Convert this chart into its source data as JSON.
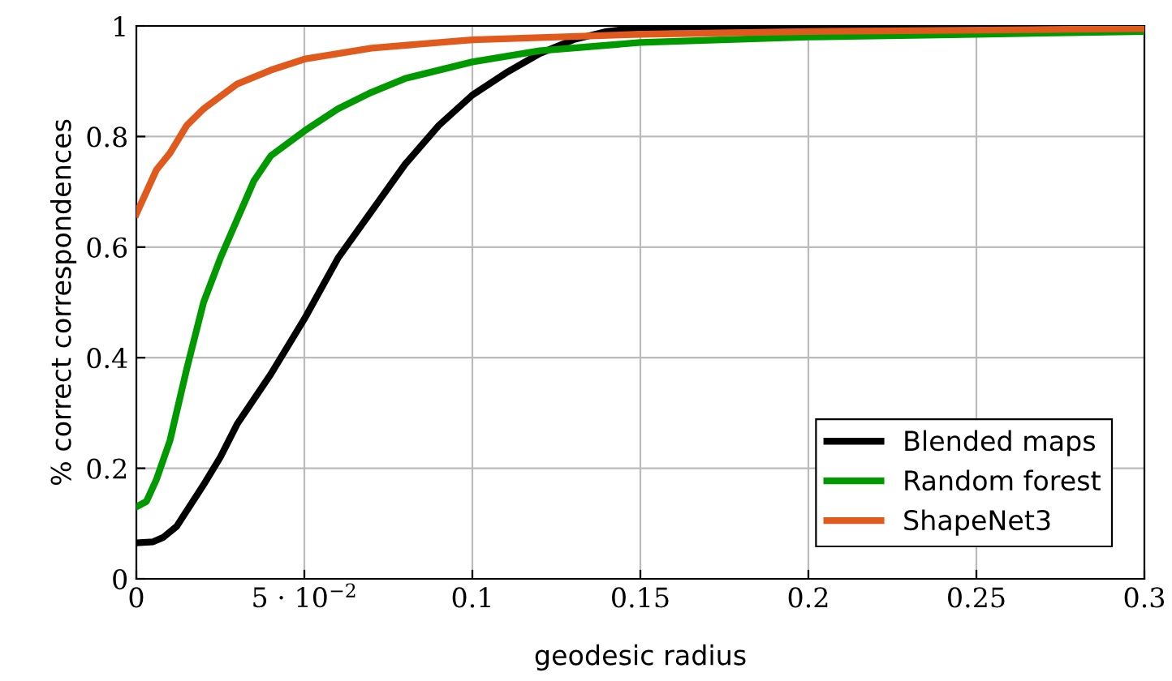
{
  "chart_data": {
    "type": "line",
    "xlabel": "geodesic radius",
    "ylabel": "% correct correspondences",
    "xlim": [
      0,
      0.3
    ],
    "ylim": [
      0,
      1
    ],
    "xticks": [
      0,
      {
        "value": 0.05,
        "label": "5 · 10$^{−2}$"
      },
      0.1,
      0.15,
      0.2,
      0.25,
      0.3
    ],
    "yticks": [
      0,
      0.2,
      0.4,
      0.6,
      0.8,
      1
    ],
    "grid": true,
    "legend": "bottom right",
    "marker": "none",
    "line_style": "solid",
    "series": [
      {
        "name": "Blended maps",
        "color": "#000000",
        "x": [
          0,
          0.005,
          0.008,
          0.012,
          0.02,
          0.025,
          0.03,
          0.04,
          0.05,
          0.06,
          0.07,
          0.08,
          0.09,
          0.1,
          0.11,
          0.12,
          0.13,
          0.14,
          0.15,
          0.2,
          0.3
        ],
        "values": [
          0.065,
          0.067,
          0.075,
          0.095,
          0.17,
          0.22,
          0.28,
          0.37,
          0.47,
          0.58,
          0.665,
          0.75,
          0.82,
          0.875,
          0.915,
          0.95,
          0.975,
          0.99,
          0.997,
          1.0,
          1.0
        ]
      },
      {
        "name": "Random forest",
        "color": "#009900",
        "x": [
          0,
          0.003,
          0.006,
          0.01,
          0.015,
          0.02,
          0.025,
          0.03,
          0.035,
          0.04,
          0.05,
          0.06,
          0.07,
          0.08,
          0.1,
          0.12,
          0.15,
          0.2,
          0.25,
          0.3
        ],
        "values": [
          0.13,
          0.14,
          0.18,
          0.25,
          0.38,
          0.5,
          0.58,
          0.65,
          0.72,
          0.765,
          0.81,
          0.85,
          0.88,
          0.905,
          0.935,
          0.955,
          0.97,
          0.98,
          0.985,
          0.99
        ]
      },
      {
        "name": "ShapeNet3",
        "color": "#e05a1e",
        "x": [
          0,
          0.006,
          0.01,
          0.015,
          0.02,
          0.03,
          0.04,
          0.05,
          0.07,
          0.1,
          0.15,
          0.2,
          0.3
        ],
        "values": [
          0.66,
          0.74,
          0.77,
          0.82,
          0.85,
          0.895,
          0.92,
          0.94,
          0.96,
          0.975,
          0.985,
          0.99,
          0.995
        ]
      }
    ]
  }
}
